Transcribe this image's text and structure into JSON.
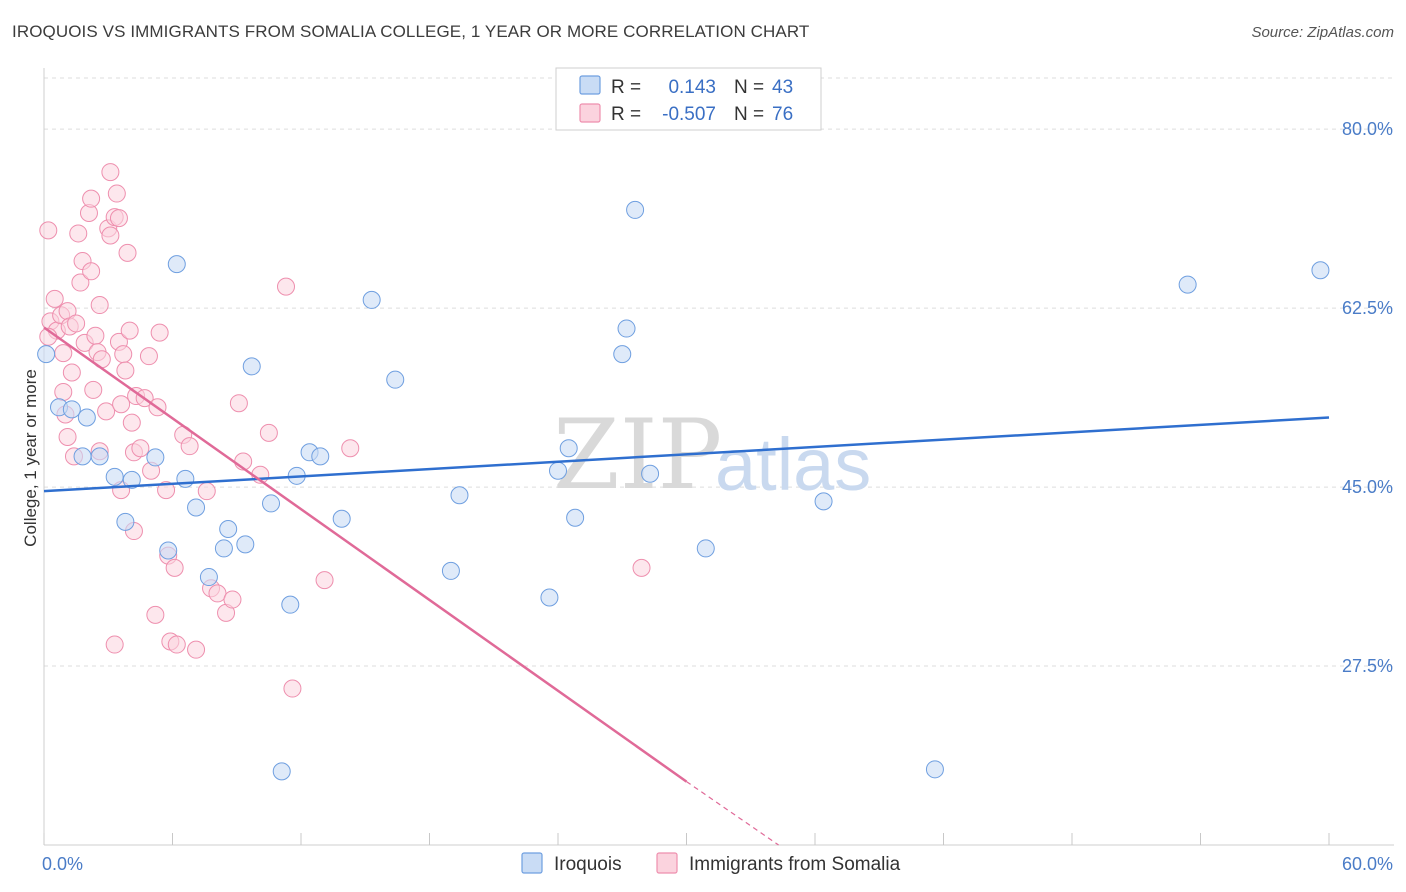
{
  "title": "IROQUOIS VS IMMIGRANTS FROM SOMALIA COLLEGE, 1 YEAR OR MORE CORRELATION CHART",
  "source": "Source: ZipAtlas.com",
  "watermark": {
    "zip": "ZIP",
    "atlas": "atlas"
  },
  "colors": {
    "iroquois_fill": "#c9dcf5",
    "iroquois_stroke": "#6f9fe0",
    "iroquois_line": "#2f6fcf",
    "somalia_fill": "#fbd3de",
    "somalia_stroke": "#ee8fae",
    "somalia_line": "#e06a98",
    "grid": "#dddddd",
    "axis_label": "#4a7cc7"
  },
  "legend": {
    "rows": [
      {
        "r_label": "R = ",
        "r_value": "0.143",
        "n_label": "N = ",
        "n_value": "43"
      },
      {
        "r_label": "R = ",
        "r_value": "-0.507",
        "n_label": "N = ",
        "n_value": "76"
      }
    ]
  },
  "chart_data": {
    "type": "scatter",
    "title": "IROQUOIS VS IMMIGRANTS FROM SOMALIA COLLEGE, 1 YEAR OR MORE CORRELATION CHART",
    "xlabel": "",
    "ylabel": "College, 1 year or more",
    "xlim": [
      0,
      60
    ],
    "ylim": [
      10,
      85
    ],
    "x_tick_labels": [
      "0.0%",
      "60.0%"
    ],
    "y_ticks": [
      27.5,
      45.0,
      62.5,
      80.0
    ],
    "y_tick_labels": [
      "27.5%",
      "45.0%",
      "62.5%",
      "80.0%"
    ],
    "grid": true,
    "legend_position": "top-center",
    "series": [
      {
        "name": "Iroquois",
        "r": 0.143,
        "n": 43,
        "trend": {
          "x": [
            0,
            60
          ],
          "y": [
            44.6,
            51.8
          ]
        },
        "points": [
          [
            0.1,
            58.0
          ],
          [
            0.7,
            52.8
          ],
          [
            1.3,
            52.6
          ],
          [
            2.0,
            51.8
          ],
          [
            1.8,
            48.0
          ],
          [
            2.6,
            48.0
          ],
          [
            3.3,
            46.0
          ],
          [
            4.1,
            45.7
          ],
          [
            3.8,
            41.6
          ],
          [
            5.2,
            47.9
          ],
          [
            6.2,
            66.8
          ],
          [
            6.6,
            45.8
          ],
          [
            7.1,
            43.0
          ],
          [
            5.8,
            38.8
          ],
          [
            7.7,
            36.2
          ],
          [
            8.4,
            39.0
          ],
          [
            8.6,
            40.9
          ],
          [
            9.4,
            39.4
          ],
          [
            9.7,
            56.8
          ],
          [
            10.6,
            43.4
          ],
          [
            11.1,
            17.2
          ],
          [
            11.5,
            33.5
          ],
          [
            11.8,
            46.1
          ],
          [
            12.4,
            48.4
          ],
          [
            12.9,
            48.0
          ],
          [
            13.9,
            41.9
          ],
          [
            15.3,
            63.3
          ],
          [
            16.4,
            55.5
          ],
          [
            19.0,
            36.8
          ],
          [
            19.4,
            44.2
          ],
          [
            24.0,
            46.6
          ],
          [
            24.5,
            48.8
          ],
          [
            24.8,
            42.0
          ],
          [
            27.2,
            60.5
          ],
          [
            27.6,
            72.1
          ],
          [
            28.3,
            46.3
          ],
          [
            23.6,
            34.2
          ],
          [
            30.9,
            39.0
          ],
          [
            36.4,
            43.6
          ],
          [
            41.6,
            17.4
          ],
          [
            53.4,
            64.8
          ],
          [
            59.6,
            66.2
          ],
          [
            27.0,
            58.0
          ]
        ]
      },
      {
        "name": "Immigrants from Somalia",
        "r": -0.507,
        "n": 76,
        "trend": {
          "x": [
            0,
            30
          ],
          "y": [
            60.6,
            16.2
          ]
        },
        "trend_dashed": {
          "x": [
            30,
            34.3
          ],
          "y": [
            16.2,
            10.0
          ]
        },
        "points": [
          [
            0.2,
            70.1
          ],
          [
            0.5,
            63.4
          ],
          [
            0.3,
            61.2
          ],
          [
            0.6,
            60.3
          ],
          [
            0.8,
            61.8
          ],
          [
            0.2,
            59.7
          ],
          [
            0.9,
            58.1
          ],
          [
            1.1,
            62.2
          ],
          [
            1.2,
            60.7
          ],
          [
            0.9,
            54.3
          ],
          [
            1.0,
            52.1
          ],
          [
            1.1,
            49.9
          ],
          [
            1.3,
            56.2
          ],
          [
            1.5,
            61.0
          ],
          [
            1.7,
            65.0
          ],
          [
            1.6,
            69.8
          ],
          [
            1.8,
            67.1
          ],
          [
            1.4,
            48.0
          ],
          [
            1.9,
            59.1
          ],
          [
            2.1,
            71.8
          ],
          [
            2.2,
            66.1
          ],
          [
            2.2,
            73.2
          ],
          [
            2.4,
            59.8
          ],
          [
            2.3,
            54.5
          ],
          [
            2.6,
            62.8
          ],
          [
            2.5,
            58.2
          ],
          [
            2.7,
            57.5
          ],
          [
            2.6,
            48.5
          ],
          [
            2.9,
            52.4
          ],
          [
            3.0,
            70.3
          ],
          [
            3.1,
            69.6
          ],
          [
            3.3,
            71.4
          ],
          [
            3.1,
            75.8
          ],
          [
            3.4,
            73.7
          ],
          [
            3.5,
            71.3
          ],
          [
            3.5,
            59.2
          ],
          [
            3.6,
            53.1
          ],
          [
            3.7,
            58.0
          ],
          [
            3.8,
            56.4
          ],
          [
            3.6,
            44.7
          ],
          [
            3.9,
            67.9
          ],
          [
            4.0,
            60.3
          ],
          [
            4.1,
            51.3
          ],
          [
            4.2,
            48.4
          ],
          [
            4.3,
            53.9
          ],
          [
            4.5,
            48.8
          ],
          [
            4.7,
            53.7
          ],
          [
            4.2,
            40.7
          ],
          [
            4.9,
            57.8
          ],
          [
            5.0,
            46.6
          ],
          [
            5.3,
            52.8
          ],
          [
            5.4,
            60.1
          ],
          [
            5.2,
            32.5
          ],
          [
            5.7,
            44.7
          ],
          [
            5.8,
            38.3
          ],
          [
            5.9,
            29.9
          ],
          [
            6.1,
            37.1
          ],
          [
            6.2,
            29.6
          ],
          [
            6.5,
            50.1
          ],
          [
            6.8,
            49.0
          ],
          [
            7.1,
            29.1
          ],
          [
            7.6,
            44.6
          ],
          [
            7.8,
            35.1
          ],
          [
            8.1,
            34.6
          ],
          [
            8.5,
            32.7
          ],
          [
            8.8,
            34.0
          ],
          [
            9.1,
            53.2
          ],
          [
            9.3,
            47.5
          ],
          [
            10.1,
            46.2
          ],
          [
            10.5,
            50.3
          ],
          [
            11.3,
            64.6
          ],
          [
            11.6,
            25.3
          ],
          [
            13.1,
            35.9
          ],
          [
            14.3,
            48.8
          ],
          [
            27.9,
            37.1
          ],
          [
            3.3,
            29.6
          ]
        ]
      }
    ]
  },
  "bottom_legend": [
    {
      "label": "Iroquois"
    },
    {
      "label": "Immigrants from Somalia"
    }
  ]
}
